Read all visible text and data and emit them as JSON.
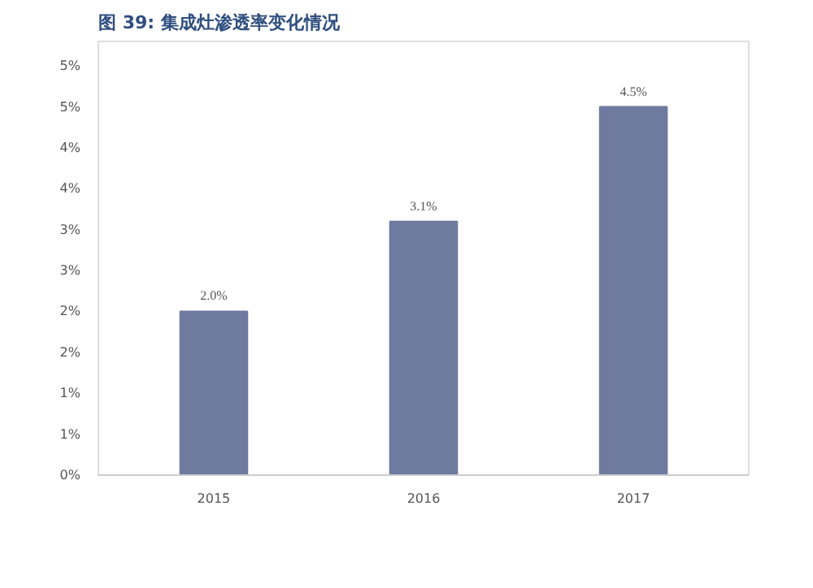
{
  "chart_data": {
    "type": "bar",
    "title": "图 39: 集成灶渗透率变化情况",
    "categories": [
      "2015",
      "2016",
      "2017"
    ],
    "values": [
      2.0,
      3.1,
      4.5
    ],
    "value_labels": [
      "2.0%",
      "3.1%",
      "4.5%"
    ],
    "color": "#6f7a9f",
    "ylim": [
      0,
      5.3
    ],
    "yticks": [
      {
        "value": 0,
        "label": "0%"
      },
      {
        "value": 0.5,
        "label": "1%"
      },
      {
        "value": 1,
        "label": "1%"
      },
      {
        "value": 1.5,
        "label": "2%"
      },
      {
        "value": 2,
        "label": "2%"
      },
      {
        "value": 2.5,
        "label": "3%"
      },
      {
        "value": 3,
        "label": "3%"
      },
      {
        "value": 3.5,
        "label": "4%"
      },
      {
        "value": 4,
        "label": "4%"
      },
      {
        "value": 4.5,
        "label": "5%"
      },
      {
        "value": 5,
        "label": "5%"
      }
    ],
    "grid": false
  }
}
